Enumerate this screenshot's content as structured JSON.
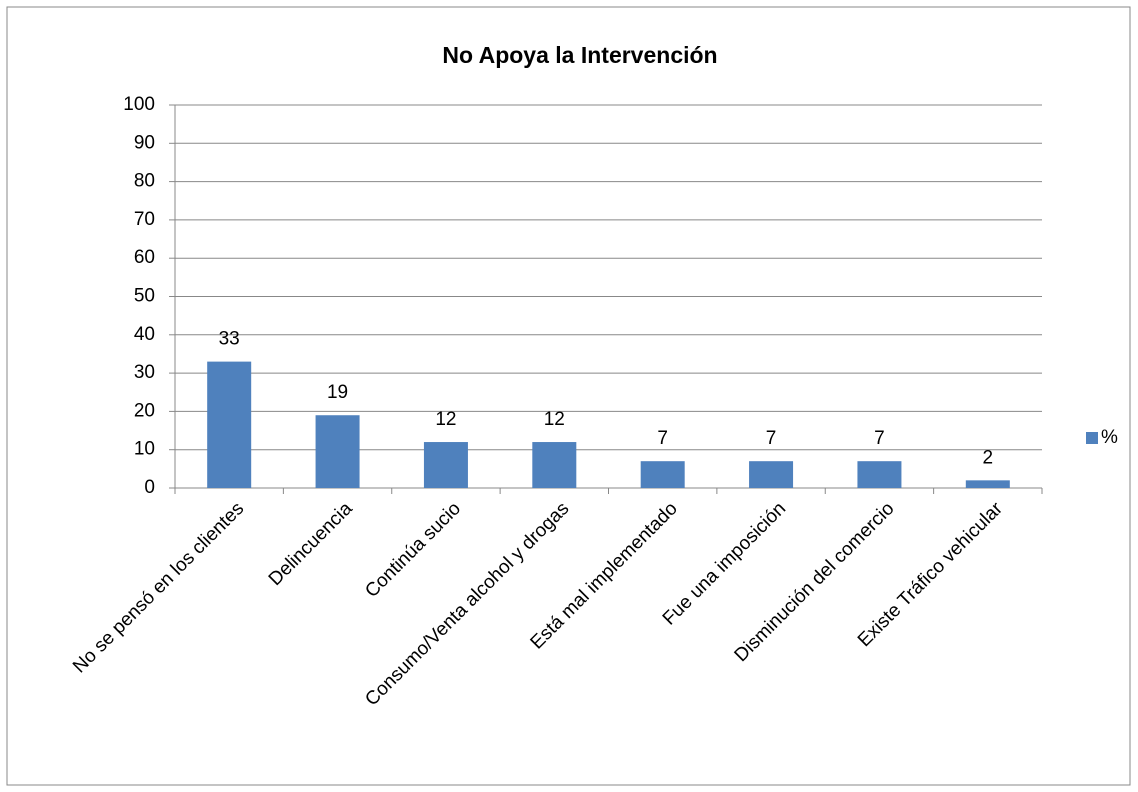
{
  "chart_data": {
    "type": "bar",
    "title": "No Apoya la Intervención",
    "categories": [
      "No se pensó en los clientes",
      "Delincuencia",
      "Continúa sucio",
      "Consumo/Venta alcohol y drogas",
      "Está mal implementado",
      "Fue una imposición",
      "Disminución del comercio",
      "Existe Tráfico vehicular"
    ],
    "series": [
      {
        "name": "%",
        "color": "#4f81bd",
        "values": [
          33,
          19,
          12,
          12,
          7,
          7,
          7,
          2
        ]
      }
    ],
    "ylim": [
      0,
      100
    ],
    "yticks": [
      0,
      10,
      20,
      30,
      40,
      50,
      60,
      70,
      80,
      90,
      100
    ],
    "grid": true,
    "legend": "right"
  }
}
